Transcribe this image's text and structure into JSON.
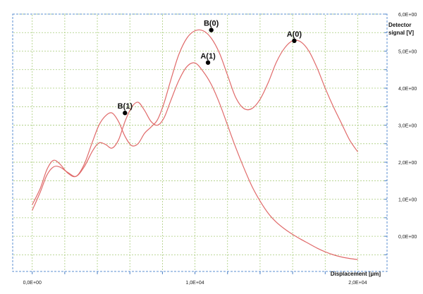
{
  "chart_data": {
    "type": "line",
    "title": "",
    "xlabel": "Displacement [µm]",
    "ylabel_line1": "Detector",
    "ylabel_line2": "signal [V]",
    "x_ticks": [
      {
        "value": 0,
        "label": "0,0E+00"
      },
      {
        "value": 10000,
        "label": "1,0E+04"
      },
      {
        "value": 20000,
        "label": "2,0E+04"
      }
    ],
    "y_ticks": [
      {
        "value": 0,
        "label": "0,0E+00"
      },
      {
        "value": 1,
        "label": "1,0E+00"
      },
      {
        "value": 2,
        "label": "2,0E+00"
      },
      {
        "value": 3,
        "label": "3,0E+00"
      },
      {
        "value": 4,
        "label": "4,0E+00"
      },
      {
        "value": 5,
        "label": "5,0E+00"
      },
      {
        "value": 6,
        "label": "6,0E+00"
      }
    ],
    "xlim": [
      -1200,
      21800
    ],
    "ylim": [
      -0.95,
      6.0
    ],
    "grid": true,
    "series": [
      {
        "color": "#e06a6a",
        "x": [
          0,
          500,
          900,
          1300,
          1700,
          2200,
          2700,
          3200,
          3700,
          4100,
          4500,
          4900,
          5300,
          5700,
          6100,
          6500,
          6900,
          7300,
          7700,
          8100,
          8500,
          9000,
          9500,
          10000,
          10500,
          11000,
          11500,
          12000,
          12500,
          13000,
          13500,
          14000,
          14500,
          15000,
          15500,
          16000,
          16500,
          17000,
          17500,
          18000,
          18500,
          19000,
          19500,
          20000
        ],
        "y": [
          0.7,
          1.2,
          1.65,
          1.87,
          1.87,
          1.72,
          1.62,
          1.88,
          2.3,
          2.52,
          2.48,
          2.38,
          2.6,
          3.1,
          3.48,
          3.62,
          3.4,
          3.1,
          3.0,
          3.2,
          3.65,
          4.2,
          4.58,
          4.68,
          4.45,
          4.1,
          3.6,
          3.0,
          2.4,
          1.85,
          1.35,
          0.95,
          0.62,
          0.38,
          0.2,
          0.05,
          -0.08,
          -0.2,
          -0.32,
          -0.42,
          -0.5,
          -0.56,
          -0.6,
          -0.63
        ]
      },
      {
        "color": "#e06a6a",
        "x": [
          0,
          500,
          900,
          1300,
          1700,
          2200,
          2700,
          3200,
          3700,
          4100,
          4500,
          4900,
          5300,
          5700,
          6100,
          6500,
          6900,
          7300,
          7700,
          8100,
          8500,
          9000,
          9500,
          10000,
          10500,
          11000,
          11500,
          12000,
          12500,
          13000,
          13500,
          14000,
          14500,
          15000,
          15500,
          16000,
          16500,
          17000,
          17500,
          18000,
          18500,
          19000,
          19500,
          20000
        ],
        "y": [
          0.85,
          1.3,
          1.8,
          2.05,
          1.95,
          1.7,
          1.62,
          1.95,
          2.55,
          3.0,
          3.25,
          3.33,
          3.1,
          2.7,
          2.45,
          2.5,
          2.78,
          2.95,
          3.15,
          3.6,
          4.2,
          4.9,
          5.35,
          5.55,
          5.55,
          5.35,
          4.95,
          4.35,
          3.75,
          3.45,
          3.45,
          3.7,
          4.15,
          4.7,
          5.08,
          5.28,
          5.25,
          5.0,
          4.55,
          4.0,
          3.5,
          3.05,
          2.6,
          2.28
        ]
      }
    ],
    "points": [
      {
        "label": "B(0)",
        "x": 11000,
        "y": 5.57
      },
      {
        "label": "A(0)",
        "x": 16100,
        "y": 5.28
      },
      {
        "label": "A(1)",
        "x": 10800,
        "y": 4.69
      },
      {
        "label": "B(1)",
        "x": 5700,
        "y": 3.33
      }
    ]
  }
}
